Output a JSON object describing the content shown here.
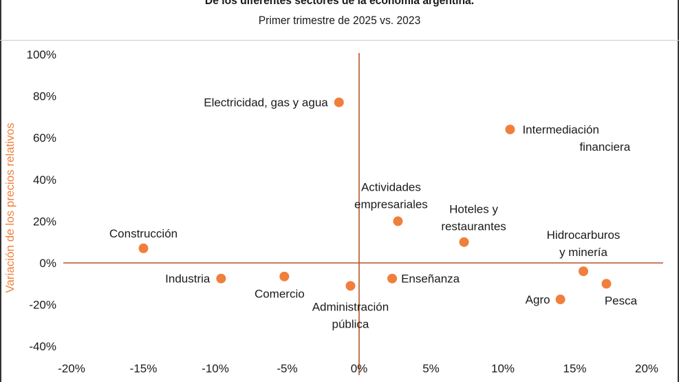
{
  "title": "De los diferentes sectores de la economía argentina.",
  "subtitle": "Primer trimestre de 2025 vs. 2023",
  "colors": {
    "accent": "#f07f3c",
    "axis": "#b5542a",
    "text": "#1a1a1a"
  },
  "chart_data": {
    "type": "scatter",
    "title": "De los diferentes sectores de la economía argentina.",
    "subtitle": "Primer trimestre de 2025 vs. 2023",
    "xlabel": "",
    "ylabel": "Variación de los precios relativos",
    "xlim": [
      -20,
      20
    ],
    "ylim": [
      -40,
      100
    ],
    "grid": false,
    "x_ticks": [
      "-20%",
      "-15%",
      "-10%",
      "-5%",
      "0%",
      "5%",
      "10%",
      "15%",
      "20%"
    ],
    "y_ticks": [
      "100%",
      "80%",
      "60%",
      "40%",
      "20%",
      "0%",
      "-20%",
      "-40%"
    ],
    "points": [
      {
        "label": "Electricidad, gas y agua",
        "x": -1.4,
        "y": 77
      },
      {
        "label": "Intermediación financiera",
        "x": 10.5,
        "y": 64
      },
      {
        "label": "Actividades empresariales",
        "x": 2.7,
        "y": 20
      },
      {
        "label": "Hoteles y restaurantes",
        "x": 7.3,
        "y": 10
      },
      {
        "label": "Construcción",
        "x": -15.0,
        "y": 7
      },
      {
        "label": "Hidrocarburos y minería",
        "x": 15.6,
        "y": -4
      },
      {
        "label": "Industria",
        "x": -9.6,
        "y": -7.5
      },
      {
        "label": "Comercio",
        "x": -5.2,
        "y": -6.5
      },
      {
        "label": "Enseñanza",
        "x": 2.3,
        "y": -7.5
      },
      {
        "label": "Administración pública",
        "x": -0.6,
        "y": -11
      },
      {
        "label": "Pesca",
        "x": 17.2,
        "y": -10
      },
      {
        "label": "Agro",
        "x": 14.0,
        "y": -17.5
      }
    ]
  }
}
